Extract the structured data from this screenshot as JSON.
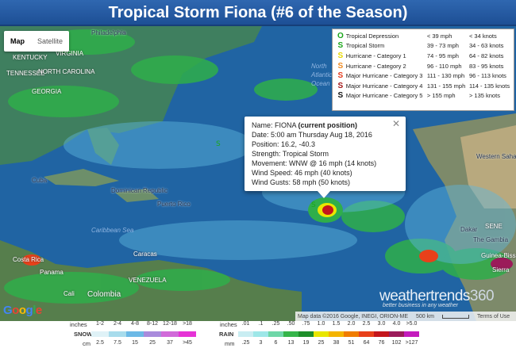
{
  "title": "Tropical Storm Fiona (#6 of the Season)",
  "map_type": {
    "map_label": "Map",
    "satellite_label": "Satellite",
    "selected": "Map"
  },
  "places": {
    "philadelphia": "Philadelphia",
    "kentucky": "KENTUCKY",
    "virginia": "VIRGINIA",
    "tennessee": "TENNESSEE",
    "north_carolina": "NORTH CAROLINA",
    "georgia": "GEORGIA",
    "north_atlantic_ocean": "North Atlantic Ocean",
    "cuba": "Cuba",
    "dominican_republic": "Dominican Republic",
    "puerto_rico": "Puerto Rico",
    "caribbean_sea": "Caribbean Sea",
    "costa_rica": "Costa Rica",
    "panama": "Panama",
    "caracas": "Caracas",
    "venezuela": "VENEZUELA",
    "cali": "Cali",
    "colombia": "Colombia",
    "western_sahara": "Western Sahara",
    "dakar": "Dakar",
    "the_gambia": "The Gambia",
    "guinea_bissau": "Guinea-Bissau",
    "senegal": "SENE",
    "sierra": "Sierra"
  },
  "legend": [
    {
      "symbol": "O",
      "color": "#1aa61a",
      "name": "Tropical Depression",
      "mph": "< 39 mph",
      "knots": "< 34 knots"
    },
    {
      "symbol": "S",
      "color": "#1aa61a",
      "name": "Tropical Storm",
      "mph": "39 - 73 mph",
      "knots": "34 - 63 knots"
    },
    {
      "symbol": "S",
      "color": "#e8d800",
      "name": "Hurricane - Category 1",
      "mph": "74 - 95 mph",
      "knots": "64 - 82 knots"
    },
    {
      "symbol": "S",
      "color": "#f08a1e",
      "name": "Hurricane - Category 2",
      "mph": "96 - 110 mph",
      "knots": "83 - 95 knots"
    },
    {
      "symbol": "S",
      "color": "#e63a1a",
      "name": "Major Hurricane - Category 3",
      "mph": "111 - 130 mph",
      "knots": "96 - 113 knots"
    },
    {
      "symbol": "S",
      "color": "#a31515",
      "name": "Major Hurricane - Category 4",
      "mph": "131 - 155 mph",
      "knots": "114 - 135 knots"
    },
    {
      "symbol": "S",
      "color": "#111111",
      "name": "Major Hurricane - Category 5",
      "mph": "> 155 mph",
      "knots": "> 135 knots"
    }
  ],
  "popup": {
    "name_label": "Name: FIONA ",
    "name_status": "(current position)",
    "date": "Date: 5:00 am Thursday Aug 18, 2016",
    "position": "Position: 16.2, -40.3",
    "strength": "Strength: Tropical Storm",
    "movement": "Movement: WNW @ 16 mph (14 knots)",
    "wind_speed": "Wind Speed: 46 mph (40 knots)",
    "wind_gusts": "Wind Gusts: 58 mph (50 knots)",
    "close": "✕"
  },
  "google_logo": [
    "G",
    "o",
    "o",
    "g",
    "l",
    "e"
  ],
  "brand": {
    "name": "weathertrends",
    "number": "360",
    "tagline": "better business in any weather"
  },
  "attribution": {
    "data": "Map data ©2016 Google, INEGI, ORION-ME",
    "scale": "500 km",
    "terms": "Terms of Use"
  },
  "snow_scale": {
    "inches_label": "inches",
    "inches": [
      "1-2",
      "2-4",
      "4-8",
      "8-12",
      "12-18",
      ">18"
    ],
    "title": "SNOW",
    "cm_label": "cm",
    "cm": [
      "2.5",
      "7.5",
      "15",
      "25",
      "37",
      ">45"
    ],
    "colors": [
      "#dff2f7",
      "#a8dcec",
      "#6cb9e6",
      "#a98bdc",
      "#d16ad9",
      "#e633d6"
    ]
  },
  "rain_scale": {
    "inches_label": "inches",
    "inches": [
      ".01",
      ".1",
      ".25",
      ".50",
      ".75",
      "1.0",
      "1.5",
      "2.0",
      "2.5",
      "3.0",
      "4.0",
      ">5.0"
    ],
    "title": "RAIN",
    "mm_label": "mm",
    "mm": [
      ".25",
      "3",
      "6",
      "13",
      "19",
      "25",
      "38",
      "51",
      "64",
      "76",
      "102",
      ">127"
    ],
    "colors": [
      "#c9edf2",
      "#9ee7e8",
      "#6fd7a8",
      "#36b54a",
      "#1e8e2a",
      "#e8e600",
      "#f4b400",
      "#f07d00",
      "#e8401a",
      "#c4161c",
      "#9b1b5a",
      "#c41bbd"
    ]
  }
}
